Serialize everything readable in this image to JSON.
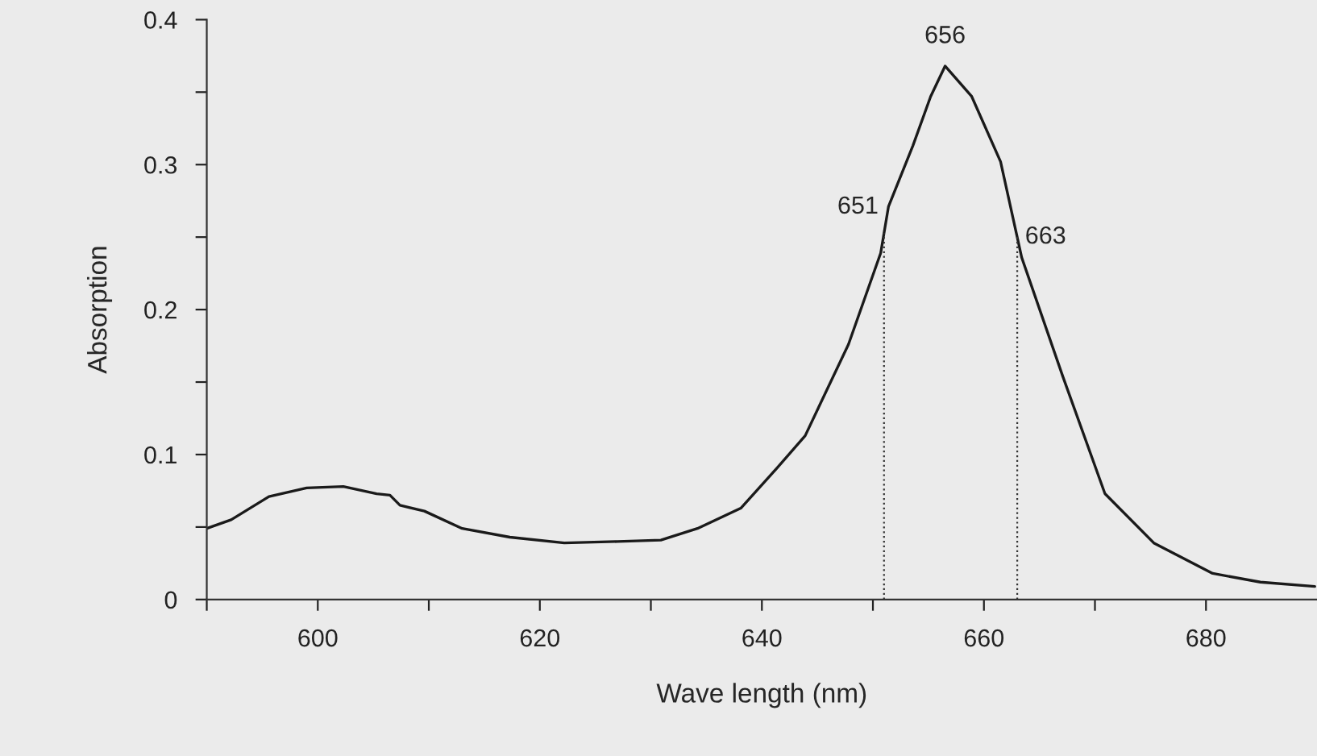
{
  "chart_data": {
    "type": "line",
    "xlabel": "Wave length (nm)",
    "ylabel": "Absorption",
    "x": [
      590,
      592.2,
      595.6,
      599,
      602.3,
      605.3,
      606.5,
      607.4,
      609.6,
      613,
      617.3,
      622.2,
      627,
      630.9,
      634.2,
      638.1,
      641.4,
      643.9,
      647.8,
      650.7,
      651.4,
      653.6,
      655.2,
      656.5,
      658.9,
      661.5,
      663.4,
      667.1,
      670.9,
      675.3,
      680.6,
      684.9,
      689.8
    ],
    "series": [
      {
        "color": "#1a1a1a",
        "values": [
          0.049,
          0.055,
          0.071,
          0.077,
          0.078,
          0.073,
          0.072,
          0.065,
          0.061,
          0.049,
          0.043,
          0.039,
          0.04,
          0.041,
          0.049,
          0.063,
          0.091,
          0.113,
          0.176,
          0.239,
          0.271,
          0.313,
          0.347,
          0.368,
          0.347,
          0.302,
          0.236,
          0.154,
          0.073,
          0.039,
          0.018,
          0.012,
          0.009
        ]
      }
    ],
    "xlim": [
      590,
      690
    ],
    "ylim": [
      0,
      0.4
    ],
    "xticks": [
      {
        "value": 590,
        "label": null
      },
      600,
      {
        "value": 610,
        "label": null
      },
      620,
      {
        "value": 630,
        "label": null
      },
      640,
      {
        "value": 650,
        "label": null
      },
      660,
      {
        "value": 670,
        "label": null
      },
      680
    ],
    "yticks": [
      0,
      {
        "value": 0.05,
        "label": null
      },
      0.1,
      {
        "value": 0.15,
        "label": null
      },
      0.2,
      {
        "value": 0.25,
        "label": null
      },
      0.3,
      {
        "value": 0.35,
        "label": null
      },
      0.4
    ],
    "ref_lines": [
      {
        "axis": "x",
        "value": 651,
        "label": "651",
        "line_style": "dotted"
      },
      {
        "axis": "x",
        "value": 663,
        "label": "663",
        "line_style": "dotted"
      }
    ],
    "annotations": [
      {
        "text": "656",
        "x": 656.5,
        "y": 0.368
      }
    ],
    "grid": false,
    "legend": false,
    "marker": "none",
    "line_style": "solid"
  }
}
